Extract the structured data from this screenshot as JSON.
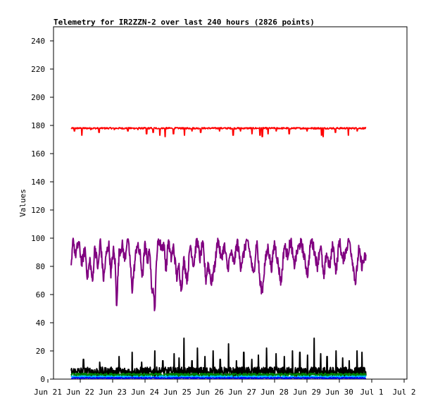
{
  "chart_data": {
    "type": "line",
    "title": "Telemetry for IR2ZZN-2 over last 240 hours (2826 points)",
    "xlabel": "",
    "ylabel": "Values",
    "ylim": [
      0,
      250
    ],
    "yticks": [
      0,
      20,
      40,
      60,
      80,
      100,
      120,
      140,
      160,
      180,
      200,
      220,
      240
    ],
    "xlim_days": [
      0,
      10.4
    ],
    "x_tick_labels": [
      "Jun 21",
      "Jun 22",
      "Jun 23",
      "Jun 24",
      "Jun 25",
      "Jun 26",
      "Jun 27",
      "Jun 28",
      "Jun 29",
      "Jun 30",
      "Jul 1",
      "Jul 2"
    ],
    "x_range_days": [
      0.72,
      9.82
    ],
    "grid": false,
    "legend": "none",
    "series": [
      {
        "color": "#ff0000",
        "base": 178,
        "noise": 0.6,
        "dips": [
          [
            0.82,
            176
          ],
          [
            1.05,
            173
          ],
          [
            1.32,
            177
          ],
          [
            1.58,
            175
          ],
          [
            2.05,
            177
          ],
          [
            2.47,
            176
          ],
          [
            2.78,
            177
          ],
          [
            3.05,
            174
          ],
          [
            3.25,
            175
          ],
          [
            3.46,
            173
          ],
          [
            3.62,
            172
          ],
          [
            3.88,
            174
          ],
          [
            4.22,
            173
          ],
          [
            4.45,
            176
          ],
          [
            4.72,
            175
          ],
          [
            5.3,
            176
          ],
          [
            5.72,
            173
          ],
          [
            5.95,
            176
          ],
          [
            6.3,
            174
          ],
          [
            6.55,
            173
          ],
          [
            6.62,
            172
          ],
          [
            6.8,
            174
          ],
          [
            7.05,
            176
          ],
          [
            7.45,
            174
          ],
          [
            8.0,
            176
          ],
          [
            8.45,
            173
          ],
          [
            8.5,
            172
          ],
          [
            8.88,
            175
          ],
          [
            9.28,
            173
          ],
          [
            9.55,
            176
          ]
        ]
      },
      {
        "color": "#800080",
        "keypoints": [
          [
            0.72,
            77
          ],
          [
            0.78,
            100
          ],
          [
            0.85,
            88
          ],
          [
            0.95,
            97
          ],
          [
            1.05,
            82
          ],
          [
            1.15,
            93
          ],
          [
            1.22,
            72
          ],
          [
            1.3,
            85
          ],
          [
            1.38,
            68
          ],
          [
            1.45,
            95
          ],
          [
            1.55,
            78
          ],
          [
            1.62,
            99
          ],
          [
            1.72,
            70
          ],
          [
            1.8,
            88
          ],
          [
            1.88,
            96
          ],
          [
            1.95,
            74
          ],
          [
            2.02,
            92
          ],
          [
            2.08,
            82
          ],
          [
            2.12,
            52
          ],
          [
            2.2,
            90
          ],
          [
            2.3,
            95
          ],
          [
            2.38,
            84
          ],
          [
            2.45,
            100
          ],
          [
            2.52,
            90
          ],
          [
            2.6,
            63
          ],
          [
            2.68,
            82
          ],
          [
            2.75,
            96
          ],
          [
            2.85,
            88
          ],
          [
            2.92,
            72
          ],
          [
            3.0,
            96
          ],
          [
            3.08,
            84
          ],
          [
            3.15,
            92
          ],
          [
            3.2,
            62
          ],
          [
            3.25,
            68
          ],
          [
            3.3,
            48
          ],
          [
            3.36,
            88
          ],
          [
            3.42,
            100
          ],
          [
            3.5,
            93
          ],
          [
            3.58,
            96
          ],
          [
            3.65,
            77
          ],
          [
            3.72,
            99
          ],
          [
            3.8,
            85
          ],
          [
            3.88,
            94
          ],
          [
            3.98,
            72
          ],
          [
            4.05,
            80
          ],
          [
            4.12,
            63
          ],
          [
            4.2,
            85
          ],
          [
            4.3,
            70
          ],
          [
            4.4,
            96
          ],
          [
            4.5,
            80
          ],
          [
            4.6,
            100
          ],
          [
            4.7,
            85
          ],
          [
            4.78,
            98
          ],
          [
            4.88,
            70
          ],
          [
            4.95,
            83
          ],
          [
            5.05,
            68
          ],
          [
            5.15,
            80
          ],
          [
            5.25,
            100
          ],
          [
            5.35,
            85
          ],
          [
            5.45,
            95
          ],
          [
            5.55,
            78
          ],
          [
            5.65,
            90
          ],
          [
            5.75,
            82
          ],
          [
            5.85,
            98
          ],
          [
            5.95,
            80
          ],
          [
            6.05,
            89
          ],
          [
            6.15,
            100
          ],
          [
            6.25,
            88
          ],
          [
            6.35,
            73
          ],
          [
            6.45,
            99
          ],
          [
            6.55,
            68
          ],
          [
            6.62,
            62
          ],
          [
            6.7,
            82
          ],
          [
            6.8,
            94
          ],
          [
            6.9,
            78
          ],
          [
            7.0,
            97
          ],
          [
            7.1,
            83
          ],
          [
            7.2,
            68
          ],
          [
            7.3,
            95
          ],
          [
            7.4,
            88
          ],
          [
            7.5,
            99
          ],
          [
            7.6,
            80
          ],
          [
            7.72,
            92
          ],
          [
            7.82,
            98
          ],
          [
            7.92,
            86
          ],
          [
            8.02,
            74
          ],
          [
            8.12,
            100
          ],
          [
            8.22,
            92
          ],
          [
            8.32,
            80
          ],
          [
            8.42,
            96
          ],
          [
            8.52,
            70
          ],
          [
            8.6,
            90
          ],
          [
            8.7,
            79
          ],
          [
            8.8,
            96
          ],
          [
            8.9,
            76
          ],
          [
            9.0,
            99
          ],
          [
            9.1,
            84
          ],
          [
            9.2,
            91
          ],
          [
            9.3,
            100
          ],
          [
            9.4,
            85
          ],
          [
            9.5,
            68
          ],
          [
            9.6,
            92
          ],
          [
            9.7,
            80
          ],
          [
            9.78,
            86
          ],
          [
            9.82,
            87
          ]
        ],
        "noise": 4
      },
      {
        "color": "#000000",
        "base": 5,
        "noise": 3.5,
        "spikes": [
          [
            1.1,
            14
          ],
          [
            1.6,
            12
          ],
          [
            2.2,
            16
          ],
          [
            2.6,
            19
          ],
          [
            2.9,
            12
          ],
          [
            3.3,
            20
          ],
          [
            3.55,
            13
          ],
          [
            3.9,
            18
          ],
          [
            4.05,
            15
          ],
          [
            4.2,
            29
          ],
          [
            4.45,
            13
          ],
          [
            4.62,
            22
          ],
          [
            4.85,
            16
          ],
          [
            5.1,
            20
          ],
          [
            5.32,
            14
          ],
          [
            5.58,
            25
          ],
          [
            5.82,
            13
          ],
          [
            6.05,
            19
          ],
          [
            6.3,
            14
          ],
          [
            6.5,
            17
          ],
          [
            6.75,
            22
          ],
          [
            7.05,
            18
          ],
          [
            7.3,
            16
          ],
          [
            7.55,
            20
          ],
          [
            7.78,
            19
          ],
          [
            8.02,
            17
          ],
          [
            8.22,
            29
          ],
          [
            8.42,
            18
          ],
          [
            8.62,
            16
          ],
          [
            8.9,
            20
          ],
          [
            9.1,
            15
          ],
          [
            9.3,
            13
          ],
          [
            9.55,
            20
          ],
          [
            9.7,
            19
          ]
        ]
      },
      {
        "color": "#008000",
        "base": 3.2,
        "noise": 1
      },
      {
        "color": "#00bfff",
        "base": 1.6,
        "noise": 0.8
      },
      {
        "color": "#0000ff",
        "base": 0.8,
        "noise": 0.4
      }
    ]
  }
}
